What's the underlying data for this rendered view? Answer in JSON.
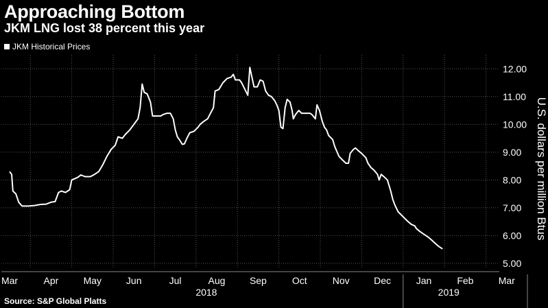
{
  "header": {
    "title": "Approaching Bottom",
    "subtitle": "JKM LNG lost 38 percent this year"
  },
  "legend": {
    "label": "JKM Historical Prices"
  },
  "footer": {
    "source": "Source: S&P Global Platts"
  },
  "colors": {
    "background": "#000000",
    "line": "#ffffff",
    "grid": "#555555"
  },
  "chart_data": {
    "type": "line",
    "series": [
      {
        "name": "JKM Historical Prices",
        "values": [
          [
            0.0,
            8.3
          ],
          [
            0.05,
            8.2
          ],
          [
            0.08,
            7.6
          ],
          [
            0.15,
            7.5
          ],
          [
            0.22,
            7.2
          ],
          [
            0.3,
            7.06
          ],
          [
            0.45,
            7.06
          ],
          [
            0.6,
            7.08
          ],
          [
            0.75,
            7.12
          ],
          [
            0.88,
            7.13
          ],
          [
            1.0,
            7.2
          ],
          [
            1.1,
            7.22
          ],
          [
            1.18,
            7.55
          ],
          [
            1.25,
            7.6
          ],
          [
            1.35,
            7.55
          ],
          [
            1.45,
            7.65
          ],
          [
            1.5,
            8.0
          ],
          [
            1.58,
            8.05
          ],
          [
            1.65,
            8.1
          ],
          [
            1.72,
            8.18
          ],
          [
            1.82,
            8.12
          ],
          [
            1.95,
            8.12
          ],
          [
            2.05,
            8.2
          ],
          [
            2.15,
            8.3
          ],
          [
            2.25,
            8.55
          ],
          [
            2.35,
            8.85
          ],
          [
            2.45,
            9.1
          ],
          [
            2.55,
            9.25
          ],
          [
            2.62,
            9.55
          ],
          [
            2.72,
            9.5
          ],
          [
            2.8,
            9.65
          ],
          [
            2.9,
            9.8
          ],
          [
            3.0,
            10.0
          ],
          [
            3.05,
            10.1
          ],
          [
            3.1,
            10.2
          ],
          [
            3.15,
            10.6
          ],
          [
            3.2,
            11.45
          ],
          [
            3.25,
            11.15
          ],
          [
            3.32,
            11.1
          ],
          [
            3.4,
            10.8
          ],
          [
            3.45,
            10.3
          ],
          [
            3.55,
            10.3
          ],
          [
            3.65,
            10.3
          ],
          [
            3.7,
            10.35
          ],
          [
            3.8,
            10.4
          ],
          [
            3.88,
            10.4
          ],
          [
            3.95,
            10.2
          ],
          [
            4.0,
            9.8
          ],
          [
            4.05,
            9.55
          ],
          [
            4.1,
            9.45
          ],
          [
            4.17,
            9.28
          ],
          [
            4.22,
            9.3
          ],
          [
            4.28,
            9.5
          ],
          [
            4.35,
            9.7
          ],
          [
            4.45,
            9.75
          ],
          [
            4.55,
            9.9
          ],
          [
            4.6,
            10.0
          ],
          [
            4.68,
            10.1
          ],
          [
            4.78,
            10.2
          ],
          [
            4.85,
            10.4
          ],
          [
            4.92,
            10.6
          ],
          [
            4.96,
            11.2
          ],
          [
            5.05,
            11.25
          ],
          [
            5.15,
            11.5
          ],
          [
            5.25,
            11.65
          ],
          [
            5.35,
            11.7
          ],
          [
            5.4,
            11.8
          ],
          [
            5.45,
            11.6
          ],
          [
            5.55,
            11.6
          ],
          [
            5.6,
            11.5
          ],
          [
            5.7,
            11.2
          ],
          [
            5.75,
            11.05
          ],
          [
            5.8,
            12.05
          ],
          [
            5.85,
            11.7
          ],
          [
            5.9,
            11.35
          ],
          [
            5.98,
            11.35
          ],
          [
            6.05,
            11.6
          ],
          [
            6.12,
            11.55
          ],
          [
            6.18,
            11.2
          ],
          [
            6.25,
            11.05
          ],
          [
            6.32,
            11.0
          ],
          [
            6.4,
            10.85
          ],
          [
            6.45,
            10.7
          ],
          [
            6.5,
            10.5
          ],
          [
            6.55,
            9.9
          ],
          [
            6.6,
            9.85
          ],
          [
            6.65,
            10.6
          ],
          [
            6.7,
            10.9
          ],
          [
            6.77,
            10.8
          ],
          [
            6.82,
            10.5
          ],
          [
            6.85,
            10.2
          ],
          [
            6.9,
            10.35
          ],
          [
            6.98,
            10.5
          ],
          [
            7.05,
            10.4
          ],
          [
            7.15,
            10.4
          ],
          [
            7.25,
            10.4
          ],
          [
            7.3,
            10.35
          ],
          [
            7.38,
            10.2
          ],
          [
            7.42,
            10.7
          ],
          [
            7.48,
            10.5
          ],
          [
            7.55,
            10.1
          ],
          [
            7.6,
            9.9
          ],
          [
            7.65,
            9.8
          ],
          [
            7.7,
            9.6
          ],
          [
            7.8,
            9.45
          ],
          [
            7.85,
            9.2
          ],
          [
            7.95,
            8.85
          ],
          [
            8.05,
            8.7
          ],
          [
            8.12,
            8.6
          ],
          [
            8.18,
            8.6
          ],
          [
            8.22,
            8.95
          ],
          [
            8.3,
            9.1
          ],
          [
            8.35,
            9.15
          ],
          [
            8.42,
            9.05
          ],
          [
            8.5,
            8.95
          ],
          [
            8.6,
            8.8
          ],
          [
            8.65,
            8.6
          ],
          [
            8.72,
            8.45
          ],
          [
            8.8,
            8.35
          ],
          [
            8.88,
            8.2
          ],
          [
            8.92,
            8.0
          ],
          [
            8.97,
            8.2
          ],
          [
            9.05,
            8.1
          ],
          [
            9.12,
            8.0
          ],
          [
            9.2,
            7.6
          ],
          [
            9.25,
            7.3
          ],
          [
            9.3,
            7.1
          ],
          [
            9.38,
            6.85
          ],
          [
            9.45,
            6.75
          ],
          [
            9.55,
            6.6
          ],
          [
            9.62,
            6.5
          ],
          [
            9.7,
            6.4
          ],
          [
            9.78,
            6.35
          ],
          [
            9.82,
            6.25
          ],
          [
            9.9,
            6.15
          ],
          [
            10.0,
            6.05
          ],
          [
            10.1,
            5.95
          ],
          [
            10.18,
            5.85
          ],
          [
            10.25,
            5.75
          ],
          [
            10.35,
            5.62
          ],
          [
            10.45,
            5.52
          ]
        ]
      }
    ],
    "x_axis": {
      "ticks": [
        "Mar",
        "Apr",
        "May",
        "Jun",
        "Jul",
        "Aug",
        "Sep",
        "Oct",
        "Nov",
        "Dec",
        "Jan",
        "Feb",
        "Mar"
      ],
      "year_labels": [
        "2018",
        "2019"
      ],
      "range": [
        0,
        12
      ]
    },
    "y_axis": {
      "label": "U.S. dollars per million Btus",
      "ticks": [
        "5.00",
        "6.00",
        "7.00",
        "8.00",
        "9.00",
        "10.00",
        "11.00",
        "12.00"
      ],
      "range": [
        4.8,
        12.5
      ],
      "position": "right"
    },
    "grid": true
  }
}
